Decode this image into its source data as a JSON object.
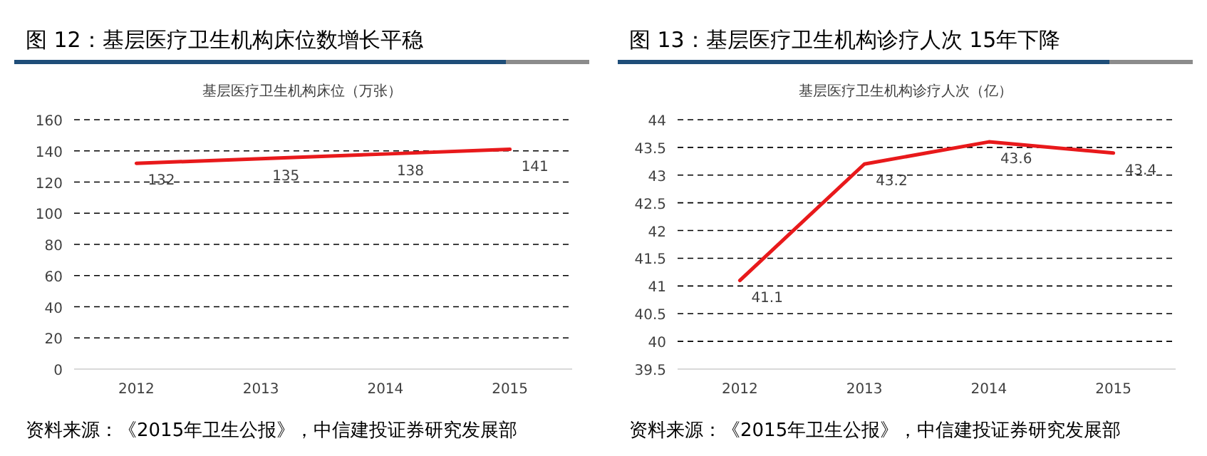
{
  "chart_data": [
    {
      "type": "line",
      "title": "图 12：基层医疗卫生机构床位数增长平稳",
      "subtitle": "基层医疗卫生机构床位（万张）",
      "categories": [
        "2012",
        "2013",
        "2014",
        "2015"
      ],
      "series": [
        {
          "color": "#e8191b",
          "values": [
            132,
            135,
            138,
            141
          ]
        }
      ],
      "ylim": [
        0,
        160
      ],
      "yticks": [
        0,
        20,
        40,
        60,
        80,
        100,
        120,
        140,
        160
      ],
      "grid": "y",
      "data_labels": true,
      "annotations": [
        "资料来源：《2015年卫生公报》，中信建投证券研究发展部"
      ]
    },
    {
      "type": "line",
      "title": "图 13：基层医疗卫生机构诊疗人次 15年下降",
      "subtitle": "基层医疗卫生机构诊疗人次（亿）",
      "categories": [
        "2012",
        "2013",
        "2014",
        "2015"
      ],
      "series": [
        {
          "color": "#e8191b",
          "values": [
            41.1,
            43.2,
            43.6,
            43.4
          ]
        }
      ],
      "ylim": [
        39.5,
        44
      ],
      "yticks": [
        39.5,
        40,
        40.5,
        41,
        41.5,
        42,
        42.5,
        43,
        43.5,
        44
      ],
      "grid": "y",
      "data_labels": true,
      "annotations": [
        "资料来源：《2015年卫生公报》，中信建投证券研究发展部"
      ]
    }
  ]
}
